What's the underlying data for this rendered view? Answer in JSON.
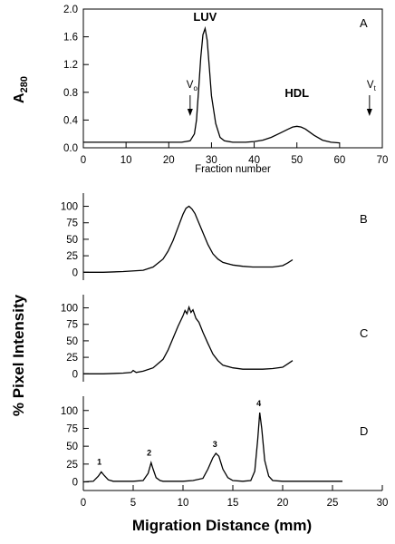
{
  "chart_data": [
    {
      "type": "line",
      "panel": "A",
      "xlabel": "Fraction number",
      "ylabel": "A280",
      "ylabel_main": "A",
      "ylabel_sub": "280",
      "xlim": [
        0,
        70
      ],
      "ylim": [
        0,
        2.0
      ],
      "x_ticks": [
        0,
        10,
        20,
        30,
        40,
        50,
        60,
        70
      ],
      "y_ticks": [
        0.0,
        0.4,
        0.8,
        1.2,
        1.6,
        2.0
      ],
      "y_tick_labels": [
        "0.0",
        "0.4",
        "0.8",
        "1.2",
        "1.6",
        "2.0"
      ],
      "series": [
        {
          "x": [
            0,
            5,
            10,
            15,
            20,
            23,
            24,
            25,
            26,
            26.5,
            27,
            27.5,
            28,
            28.5,
            29,
            29.5,
            30,
            31,
            32,
            33,
            35,
            38,
            40,
            42,
            44,
            46,
            48,
            49,
            50,
            51,
            52,
            54,
            56,
            58,
            60
          ],
          "y": [
            0.08,
            0.08,
            0.08,
            0.08,
            0.08,
            0.08,
            0.09,
            0.1,
            0.2,
            0.4,
            0.85,
            1.3,
            1.63,
            1.72,
            1.55,
            1.15,
            0.75,
            0.35,
            0.15,
            0.1,
            0.08,
            0.08,
            0.09,
            0.11,
            0.15,
            0.21,
            0.27,
            0.3,
            0.31,
            0.3,
            0.27,
            0.18,
            0.11,
            0.08,
            0.07
          ]
        }
      ],
      "annotations": {
        "peak1": "LUV",
        "peak2": "HDL",
        "v0_main": "V",
        "v0_sub": "o",
        "vt_main": "V",
        "vt_sub": "t"
      },
      "v0_x": 25,
      "vt_x": 67,
      "luv_x": 28.5,
      "hdl_x": 50
    },
    {
      "type": "line",
      "panel": "B",
      "xlim": [
        0,
        30
      ],
      "ylim": [
        -12,
        120
      ],
      "y_ticks": [
        0,
        25,
        50,
        75,
        100
      ],
      "series": [
        {
          "x": [
            0,
            2,
            4,
            6,
            7,
            8,
            8.5,
            9,
            9.5,
            10,
            10.3,
            10.6,
            10.9,
            11.2,
            11.5,
            12,
            12.5,
            13,
            13.5,
            14,
            15,
            16,
            17,
            18,
            19,
            20,
            20.5,
            21
          ],
          "y": [
            0,
            0,
            1,
            3,
            8,
            20,
            32,
            48,
            68,
            88,
            97,
            100,
            96,
            89,
            78,
            60,
            42,
            28,
            20,
            15,
            11,
            9,
            8,
            8,
            8,
            10,
            14,
            19
          ]
        }
      ]
    },
    {
      "type": "line",
      "panel": "C",
      "xlim": [
        0,
        30
      ],
      "ylim": [
        -12,
        120
      ],
      "y_ticks": [
        0,
        25,
        50,
        75,
        100
      ],
      "series": [
        {
          "x": [
            0,
            2,
            4,
            4.8,
            5,
            5.3,
            6,
            7,
            8,
            8.5,
            9,
            9.5,
            10,
            10.2,
            10.4,
            10.6,
            10.8,
            11,
            11.3,
            11.6,
            12,
            12.5,
            13,
            13.5,
            14,
            15,
            16,
            17,
            18,
            19,
            20,
            20.5,
            21
          ],
          "y": [
            0,
            0,
            1,
            2,
            5,
            2,
            4,
            9,
            22,
            36,
            54,
            72,
            88,
            96,
            91,
            101,
            93,
            97,
            84,
            78,
            63,
            46,
            30,
            20,
            13,
            9,
            7,
            7,
            7,
            8,
            10,
            15,
            20
          ]
        }
      ]
    },
    {
      "type": "line",
      "panel": "D",
      "xlabel": "Migration Distance (mm)",
      "shared_ylabel": "% Pixel Intensity",
      "xlim": [
        0,
        30
      ],
      "ylim": [
        -12,
        120
      ],
      "x_ticks": [
        0,
        5,
        10,
        15,
        20,
        25,
        30
      ],
      "y_ticks": [
        0,
        25,
        50,
        75,
        100
      ],
      "series": [
        {
          "x": [
            0,
            1,
            1.5,
            1.8,
            2.1,
            2.5,
            3,
            4,
            5,
            6,
            6.5,
            6.8,
            7,
            7.3,
            7.7,
            8,
            9,
            10,
            11,
            12,
            12.5,
            13,
            13.3,
            13.6,
            14,
            14.5,
            15,
            16,
            16.8,
            17.2,
            17.5,
            17.7,
            17.9,
            18.2,
            18.6,
            19,
            20,
            21,
            22,
            23,
            24,
            25,
            26
          ],
          "y": [
            0,
            1,
            8,
            14,
            9,
            3,
            1,
            1,
            1,
            2,
            12,
            27,
            18,
            6,
            2,
            1,
            1,
            1,
            2,
            5,
            18,
            34,
            40,
            36,
            18,
            6,
            2,
            1,
            2,
            15,
            60,
            97,
            75,
            30,
            8,
            2,
            1,
            1,
            1,
            1,
            1,
            1,
            1
          ]
        }
      ],
      "peak_labels": [
        "1",
        "2",
        "3",
        "4"
      ],
      "peak_label_x": [
        1.6,
        6.6,
        13.2,
        17.6
      ],
      "peak_label_y": [
        24,
        37,
        49,
        106
      ]
    }
  ],
  "panels": {
    "A": "A",
    "B": "B",
    "C": "C",
    "D": "D"
  }
}
